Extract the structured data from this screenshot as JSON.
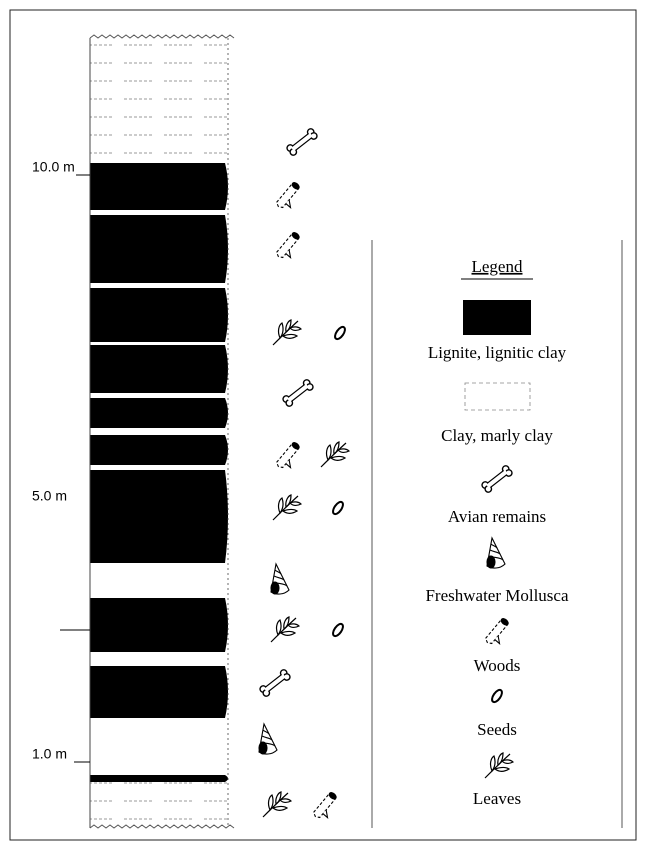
{
  "depth_labels": [
    "10.0 m",
    "5.0 m",
    "1.0 m"
  ],
  "legend": {
    "title": "Legend",
    "items": [
      "Lignite, lignitic clay",
      "Clay, marly clay",
      "Avian remains",
      "Freshwater Mollusca",
      "Woods",
      "Seeds",
      "Leaves"
    ]
  }
}
